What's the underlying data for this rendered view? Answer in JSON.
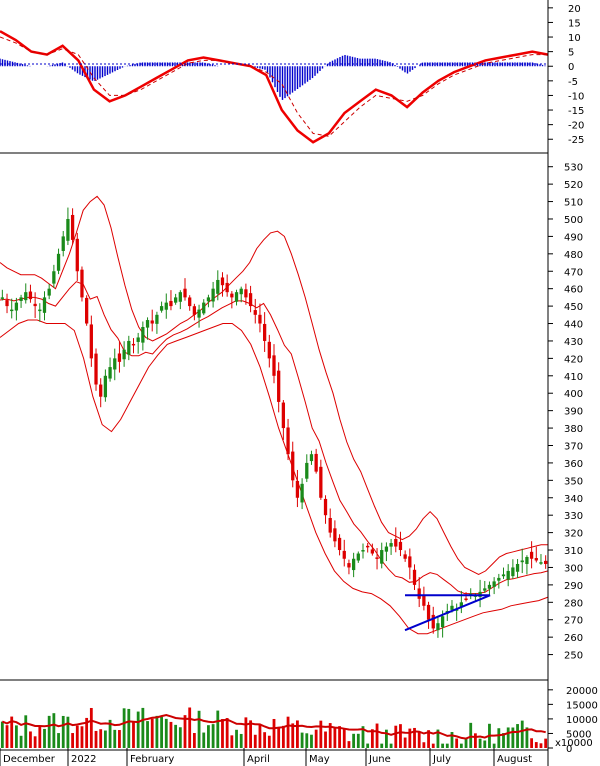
{
  "chart_data": {
    "type": "candlestick",
    "panels": {
      "macd": {
        "y_ticks": [
          20,
          15,
          10,
          5,
          0,
          -5,
          -10,
          -15,
          -20,
          -25
        ],
        "ylim": [
          -28,
          22
        ],
        "x": [
          0,
          10,
          20,
          30,
          40,
          50,
          60,
          70,
          80,
          90,
          100,
          110,
          120,
          130,
          140,
          150,
          160
        ],
        "macd": [
          12,
          9,
          5,
          4,
          7,
          2,
          -8,
          -12,
          -10,
          -7,
          -4,
          -1,
          2,
          3,
          2,
          1,
          0
        ],
        "signal": [
          10,
          8,
          5,
          4,
          6,
          4,
          -4,
          -10,
          -10,
          -8,
          -5,
          -2,
          1,
          2,
          2,
          1,
          0
        ],
        "macd_cont": {
          "x": [
            60,
            70,
            80,
            90,
            100,
            110,
            120,
            130,
            140,
            150,
            160,
            170,
            180,
            190,
            200,
            210,
            220,
            230,
            240
          ],
          "macd": [
            -3,
            -15,
            -22,
            -26,
            -23,
            -16,
            -12,
            -8,
            -10,
            -14,
            -9,
            -5,
            -2,
            0,
            2,
            3,
            4,
            5,
            4
          ],
          "signal": [
            -2,
            -6,
            -16,
            -23,
            -24,
            -19,
            -14,
            -10,
            -11,
            -12,
            -10,
            -6,
            -3,
            -1,
            1,
            2,
            3,
            4,
            4
          ]
        }
      },
      "price": {
        "y_ticks": [
          530,
          520,
          510,
          500,
          490,
          480,
          470,
          460,
          450,
          440,
          430,
          420,
          410,
          400,
          390,
          380,
          370,
          360,
          350,
          340,
          330,
          320,
          310,
          300,
          290,
          280,
          270,
          260,
          250
        ],
        "ylim": [
          240,
          535
        ],
        "closes": [
          455,
          450,
          448,
          452,
          455,
          458,
          454,
          450,
          448,
          455,
          460,
          470,
          480,
          490,
          500,
          488,
          470,
          455,
          440,
          420,
          405,
          398,
          410,
          415,
          420,
          418,
          425,
          430,
          428,
          432,
          438,
          442,
          440,
          445,
          450,
          452,
          450,
          455,
          458,
          455,
          450,
          445,
          448,
          452,
          455,
          460,
          465,
          462,
          458,
          455,
          458,
          460,
          455,
          450,
          445,
          440,
          430,
          420,
          410,
          395,
          380,
          365,
          350,
          340,
          348,
          360,
          365,
          355,
          340,
          330,
          320,
          315,
          310,
          305,
          300,
          305,
          308,
          310,
          312,
          308,
          305,
          310,
          312,
          314,
          312,
          310,
          305,
          300,
          290,
          282,
          278,
          270,
          265,
          268,
          272,
          275,
          278,
          276,
          280,
          282,
          285,
          284,
          286,
          288,
          290,
          292,
          294,
          296,
          298,
          300,
          302,
          304,
          306,
          305,
          304,
          303,
          302
        ],
        "bb_upper": [
          475,
          472,
          470,
          468,
          468,
          468,
          466,
          463,
          460,
          470,
          480,
          492,
          505,
          510,
          513,
          508,
          495,
          478,
          462,
          448,
          438,
          432,
          430,
          432,
          434,
          437,
          440,
          442,
          445,
          448,
          452,
          455,
          458,
          462,
          466,
          470,
          475,
          483,
          488,
          492,
          493,
          490,
          480,
          468,
          455,
          440,
          425,
          412,
          400,
          385,
          372,
          362,
          355,
          345,
          335,
          326,
          320,
          318,
          316,
          318,
          322,
          328,
          332,
          328,
          320,
          312,
          305,
          300,
          298,
          296,
          298,
          302,
          306,
          308,
          309,
          310,
          311,
          312,
          313,
          313
        ],
        "bb_lower": [
          432,
          436,
          440,
          442,
          442,
          440,
          440,
          440,
          436,
          420,
          398,
          382,
          378,
          385,
          395,
          405,
          415,
          422,
          428,
          430,
          432,
          434,
          436,
          438,
          440,
          440,
          436,
          428,
          415,
          398,
          380,
          365,
          350,
          335,
          320,
          308,
          298,
          292,
          288,
          286,
          285,
          282,
          278,
          272,
          265,
          262,
          262,
          264,
          266,
          268,
          270,
          272,
          274,
          275,
          276,
          278,
          279,
          280,
          281,
          283
        ],
        "triangle": {
          "a": [
            262,
            284
          ],
          "b": [
            280,
            284
          ],
          "c": [
            262,
            264
          ]
        }
      },
      "volume": {
        "y_ticks": [
          "20000",
          "15000",
          "10000",
          "5000",
          "0"
        ],
        "unit": "x10000",
        "ylim": [
          0,
          22000
        ]
      }
    },
    "x_month_labels": [
      "December",
      "2022",
      "February",
      "April",
      "May",
      "June",
      "July",
      "August"
    ]
  },
  "colors": {
    "background": "#ffffff",
    "up": "#1a8a1a",
    "down": "#dd0000",
    "bands": "#dd0000",
    "macd_line": "#ee0000",
    "signal_line": "#cc0000",
    "histogram": "#0000cc",
    "triangle": "#0000cc",
    "axis": "#000000"
  }
}
